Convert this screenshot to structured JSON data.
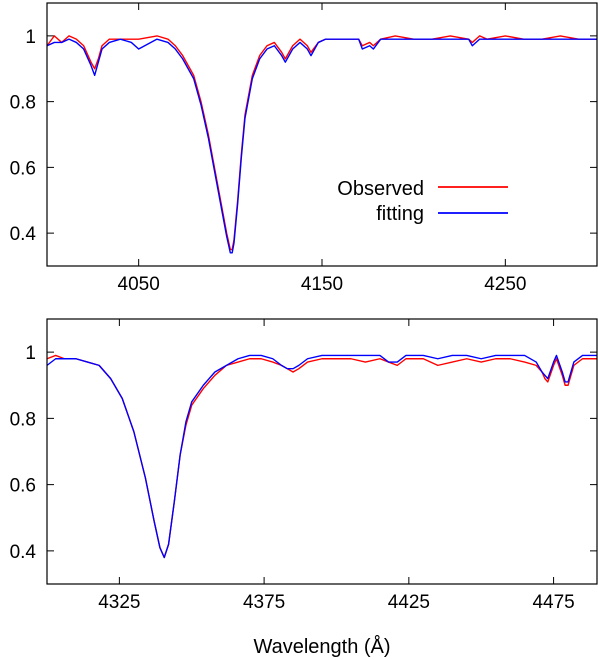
{
  "chart_data": [
    {
      "type": "line",
      "panel": "top",
      "xlim": [
        4000,
        4300
      ],
      "ylim": [
        0.3,
        1.1
      ],
      "xticks": [
        4050,
        4150,
        4250
      ],
      "xtick_labels": [
        "4050",
        "4150",
        "4250"
      ],
      "yticks": [
        0.4,
        0.6,
        0.8,
        1.0
      ],
      "ytick_labels": [
        "0.4",
        "0.6",
        "0.8",
        "1"
      ],
      "xlabel": "",
      "ylabel": "",
      "legend": {
        "position": "right",
        "entries": [
          {
            "label": "Observed",
            "color": "#ff0000"
          },
          {
            "label": "fitting",
            "color": "#0000ff"
          }
        ]
      },
      "series": [
        {
          "name": "Observed",
          "color": "#ff0000",
          "x": [
            4000,
            4004,
            4008,
            4012,
            4016,
            4020,
            4024,
            4026,
            4028,
            4030,
            4034,
            4040,
            4046,
            4050,
            4060,
            4066,
            4070,
            4074,
            4080,
            4084,
            4088,
            4092,
            4096,
            4098,
            4100,
            4101,
            4102,
            4104,
            4106,
            4108,
            4112,
            4116,
            4120,
            4124,
            4128,
            4130,
            4134,
            4138,
            4142,
            4144,
            4148,
            4152,
            4160,
            4170,
            4172,
            4176,
            4178,
            4182,
            4190,
            4200,
            4210,
            4220,
            4230,
            4232,
            4236,
            4240,
            4250,
            4260,
            4270,
            4280,
            4290,
            4300
          ],
          "y": [
            0.97,
            1.0,
            0.98,
            1.0,
            0.99,
            0.97,
            0.92,
            0.9,
            0.93,
            0.97,
            0.99,
            0.99,
            0.99,
            0.99,
            1.0,
            0.99,
            0.97,
            0.94,
            0.88,
            0.8,
            0.7,
            0.58,
            0.46,
            0.4,
            0.35,
            0.35,
            0.38,
            0.5,
            0.64,
            0.76,
            0.88,
            0.94,
            0.97,
            0.98,
            0.95,
            0.93,
            0.97,
            0.99,
            0.97,
            0.95,
            0.98,
            0.99,
            0.99,
            0.99,
            0.97,
            0.98,
            0.97,
            0.99,
            1.0,
            0.99,
            0.99,
            1.0,
            0.99,
            0.98,
            1.0,
            0.99,
            1.0,
            0.99,
            0.99,
            1.0,
            0.99,
            0.99
          ]
        },
        {
          "name": "fitting",
          "color": "#0000ff",
          "x": [
            4000,
            4004,
            4008,
            4012,
            4016,
            4020,
            4024,
            4026,
            4028,
            4030,
            4034,
            4040,
            4046,
            4050,
            4060,
            4066,
            4070,
            4074,
            4080,
            4084,
            4088,
            4092,
            4096,
            4098,
            4100,
            4101,
            4102,
            4104,
            4106,
            4108,
            4112,
            4116,
            4120,
            4124,
            4128,
            4130,
            4134,
            4138,
            4142,
            4144,
            4148,
            4152,
            4160,
            4170,
            4172,
            4176,
            4178,
            4182,
            4190,
            4200,
            4210,
            4220,
            4230,
            4232,
            4236,
            4240,
            4250,
            4260,
            4270,
            4280,
            4290,
            4300
          ],
          "y": [
            0.97,
            0.98,
            0.98,
            0.99,
            0.98,
            0.96,
            0.91,
            0.88,
            0.92,
            0.96,
            0.98,
            0.99,
            0.98,
            0.96,
            0.99,
            0.98,
            0.96,
            0.93,
            0.87,
            0.79,
            0.69,
            0.57,
            0.45,
            0.39,
            0.34,
            0.34,
            0.37,
            0.49,
            0.63,
            0.75,
            0.87,
            0.93,
            0.96,
            0.97,
            0.94,
            0.92,
            0.96,
            0.98,
            0.96,
            0.94,
            0.98,
            0.99,
            0.99,
            0.99,
            0.96,
            0.97,
            0.96,
            0.99,
            0.99,
            0.99,
            0.99,
            0.99,
            0.99,
            0.97,
            0.99,
            0.99,
            0.99,
            0.99,
            0.99,
            0.99,
            0.99,
            0.99
          ]
        }
      ]
    },
    {
      "type": "line",
      "panel": "bottom",
      "xlim": [
        4300,
        4490
      ],
      "ylim": [
        0.3,
        1.1
      ],
      "xticks": [
        4325,
        4375,
        4425,
        4475
      ],
      "xtick_labels": [
        "4325",
        "4375",
        "4425",
        "4475"
      ],
      "yticks": [
        0.4,
        0.6,
        0.8,
        1.0
      ],
      "ytick_labels": [
        "0.4",
        "0.6",
        "0.8",
        "1"
      ],
      "xlabel": "Wavelength (Å)",
      "ylabel": "",
      "series": [
        {
          "name": "Observed",
          "color": "#ff0000",
          "x": [
            4300,
            4303,
            4306,
            4310,
            4314,
            4318,
            4322,
            4326,
            4330,
            4334,
            4337,
            4339,
            4340.5,
            4342,
            4344,
            4346,
            4348,
            4350,
            4354,
            4358,
            4362,
            4366,
            4370,
            4374,
            4378,
            4381,
            4383,
            4385,
            4387,
            4390,
            4395,
            4400,
            4405,
            4410,
            4415,
            4418,
            4421,
            4424,
            4430,
            4435,
            4440,
            4445,
            4450,
            4455,
            4460,
            4465,
            4469,
            4471,
            4472,
            4473,
            4475,
            4476,
            4478,
            4479,
            4480,
            4482,
            4485,
            4490
          ],
          "y": [
            0.98,
            0.99,
            0.98,
            0.98,
            0.97,
            0.96,
            0.92,
            0.86,
            0.76,
            0.62,
            0.49,
            0.41,
            0.38,
            0.42,
            0.55,
            0.69,
            0.78,
            0.84,
            0.89,
            0.93,
            0.96,
            0.97,
            0.98,
            0.98,
            0.97,
            0.96,
            0.95,
            0.94,
            0.95,
            0.97,
            0.98,
            0.98,
            0.98,
            0.97,
            0.98,
            0.97,
            0.96,
            0.98,
            0.98,
            0.96,
            0.97,
            0.98,
            0.97,
            0.98,
            0.98,
            0.97,
            0.96,
            0.94,
            0.92,
            0.91,
            0.96,
            0.98,
            0.93,
            0.9,
            0.9,
            0.96,
            0.98,
            0.98
          ]
        },
        {
          "name": "fitting",
          "color": "#0000ff",
          "x": [
            4300,
            4303,
            4306,
            4310,
            4314,
            4318,
            4322,
            4326,
            4330,
            4334,
            4337,
            4339,
            4340.5,
            4342,
            4344,
            4346,
            4348,
            4350,
            4354,
            4358,
            4362,
            4366,
            4370,
            4374,
            4378,
            4381,
            4383,
            4385,
            4387,
            4390,
            4395,
            4400,
            4405,
            4410,
            4415,
            4418,
            4421,
            4424,
            4430,
            4435,
            4440,
            4445,
            4450,
            4455,
            4460,
            4465,
            4469,
            4471,
            4472,
            4473,
            4475,
            4476,
            4478,
            4479,
            4480,
            4482,
            4485,
            4490
          ],
          "y": [
            0.96,
            0.98,
            0.98,
            0.98,
            0.97,
            0.96,
            0.92,
            0.86,
            0.76,
            0.62,
            0.49,
            0.41,
            0.38,
            0.42,
            0.55,
            0.69,
            0.79,
            0.85,
            0.9,
            0.94,
            0.96,
            0.98,
            0.99,
            0.99,
            0.98,
            0.96,
            0.95,
            0.95,
            0.96,
            0.98,
            0.99,
            0.99,
            0.99,
            0.99,
            0.99,
            0.97,
            0.97,
            0.99,
            0.99,
            0.98,
            0.99,
            0.99,
            0.98,
            0.99,
            0.99,
            0.99,
            0.97,
            0.94,
            0.93,
            0.92,
            0.97,
            0.99,
            0.94,
            0.91,
            0.91,
            0.97,
            0.99,
            0.99
          ]
        }
      ]
    }
  ]
}
